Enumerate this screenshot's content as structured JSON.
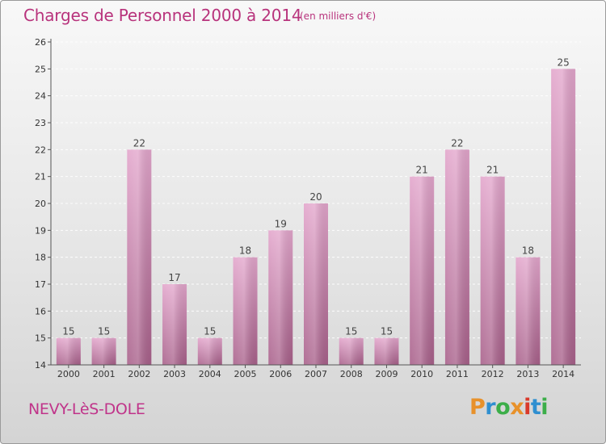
{
  "header": {
    "title": "Charges de Personnel 2000 à 2014",
    "subtitle": "(en milliers d'€)"
  },
  "footer": {
    "location": "NEVY-LèS-DOLE",
    "logo_text": "Proxiti",
    "logo_colors": [
      "#e8912a",
      "#2f8fd0",
      "#3cae49",
      "#e8912a",
      "#d93a2b",
      "#2f8fd0",
      "#3cae49"
    ]
  },
  "colors": {
    "bar_top": "#e3a6cc",
    "bar_bottom": "#a8608a",
    "accent": "#b8337c",
    "axis": "#555555"
  },
  "chart_data": {
    "type": "bar",
    "categories": [
      "2000",
      "2001",
      "2002",
      "2003",
      "2004",
      "2005",
      "2006",
      "2007",
      "2008",
      "2009",
      "2010",
      "2011",
      "2012",
      "2013",
      "2014"
    ],
    "values": [
      15,
      15,
      22,
      17,
      15,
      18,
      19,
      20,
      15,
      15,
      21,
      22,
      21,
      18,
      25
    ],
    "ylim": [
      14,
      26
    ],
    "yticks": [
      14,
      15,
      16,
      17,
      18,
      19,
      20,
      21,
      22,
      23,
      24,
      25,
      26
    ],
    "grid": true,
    "legend": "none"
  }
}
